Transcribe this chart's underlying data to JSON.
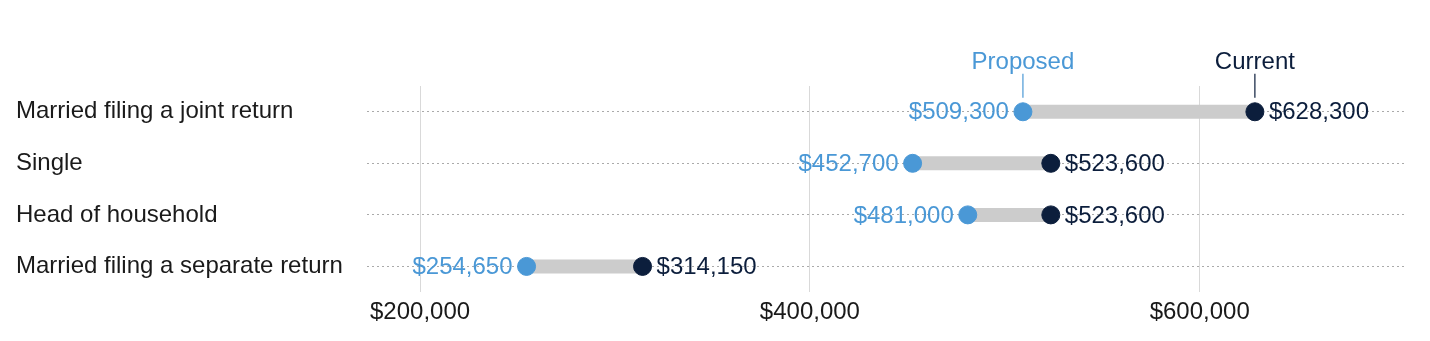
{
  "chart_data": {
    "type": "scatter",
    "orientation": "horizontal",
    "categories": [
      "Married filing a joint return",
      "Single",
      "Head of household",
      "Married filing a separate return"
    ],
    "series": [
      {
        "name": "Proposed",
        "color": "#4a98d6",
        "values": [
          509300,
          452700,
          481000,
          254650
        ],
        "value_labels": [
          "$509,300",
          "$452,700",
          "$481,000",
          "$254,650"
        ]
      },
      {
        "name": "Current",
        "color": "#0c1e3c",
        "values": [
          628300,
          523600,
          523600,
          314150
        ],
        "value_labels": [
          "$628,300",
          "$523,600",
          "$523,600",
          "$314,150"
        ]
      }
    ],
    "xlim": [
      172700,
      704800
    ],
    "xticks": [
      {
        "value": 200000,
        "label": "$200,000"
      },
      {
        "value": 400000,
        "label": "$400,000"
      },
      {
        "value": 600000,
        "label": "$600,000"
      }
    ],
    "grid": true,
    "marker": "circle"
  }
}
